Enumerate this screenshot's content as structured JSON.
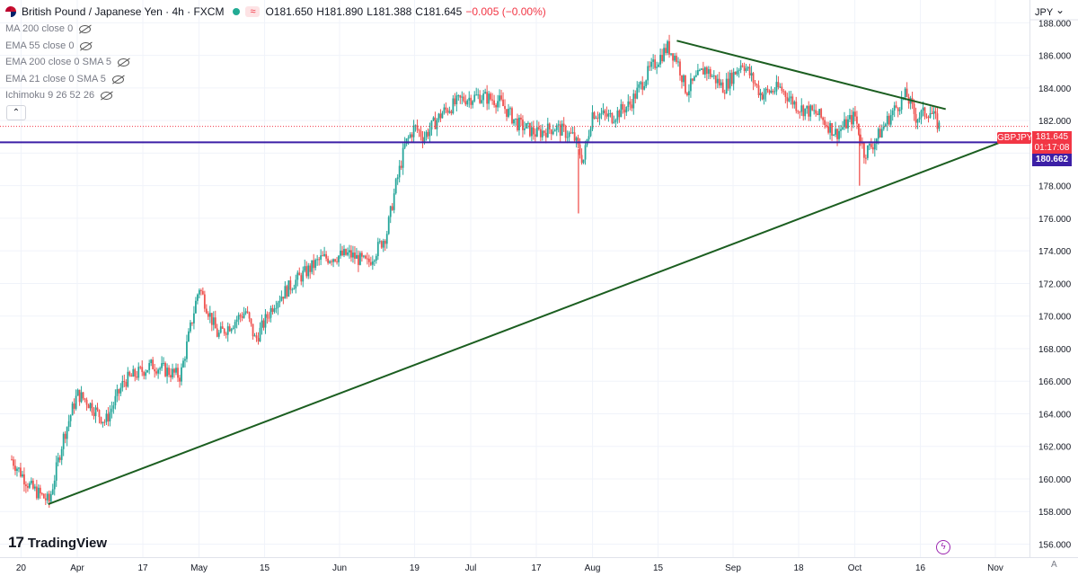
{
  "header": {
    "title": "British Pound / Japanese Yen · 4h · FXCM",
    "open": "O181.650",
    "high": "H181.890",
    "low": "L181.388",
    "close": "C181.645",
    "change": "−0.005 (−0.00%)"
  },
  "indicators": [
    "MA 200 close 0",
    "EMA 55 close 0",
    "EMA 200 close 0 SMA 5",
    "EMA 21 close 0 SMA 5",
    "Ichimoku 9 26 52 26"
  ],
  "currency_label": "JPY",
  "symbol_tag": "GBPJPY",
  "price_tag": "181.645",
  "countdown_tag": "01:17:08",
  "level_tag": "180.662",
  "logo_text": "TradingView",
  "auto_label": "A",
  "colors": {
    "up": "#26a69a",
    "down": "#ef5350",
    "trend": "#1b5e20",
    "level": "#3c1fa6",
    "tag": "#f23645"
  },
  "chart_data": {
    "type": "candlestick",
    "ylim": [
      155.2,
      189.4
    ],
    "ytick_values": [
      156,
      158,
      160,
      162,
      164,
      166,
      168,
      170,
      172,
      174,
      176,
      178,
      180,
      182,
      184,
      186,
      188
    ],
    "ytick_labels": [
      "156.000",
      "158.000",
      "160.000",
      "162.000",
      "164.000",
      "166.000",
      "168.000",
      "170.000",
      "172.000",
      "174.000",
      "176.000",
      "178.000",
      "180.000",
      "182.000",
      "184.000",
      "186.000",
      "188.000"
    ],
    "xticks": [
      {
        "label": "20",
        "t": 0.01
      },
      {
        "label": "Apr",
        "t": 0.07
      },
      {
        "label": "17",
        "t": 0.14
      },
      {
        "label": "May",
        "t": 0.2
      },
      {
        "label": "15",
        "t": 0.27
      },
      {
        "label": "Jun",
        "t": 0.35
      },
      {
        "label": "19",
        "t": 0.43
      },
      {
        "label": "Jul",
        "t": 0.49
      },
      {
        "label": "17",
        "t": 0.56
      },
      {
        "label": "Aug",
        "t": 0.62
      },
      {
        "label": "15",
        "t": 0.69
      },
      {
        "label": "Sep",
        "t": 0.77
      },
      {
        "label": "18",
        "t": 0.84
      },
      {
        "label": "Oct",
        "t": 0.9
      },
      {
        "label": "16",
        "t": 0.97
      },
      {
        "label": "Nov",
        "t": 1.05
      }
    ],
    "price_path": [
      [
        0.0,
        161.2
      ],
      [
        0.02,
        159.5
      ],
      [
        0.04,
        158.6
      ],
      [
        0.055,
        162.5
      ],
      [
        0.07,
        165.2
      ],
      [
        0.08,
        164.8
      ],
      [
        0.1,
        163.5
      ],
      [
        0.12,
        166.0
      ],
      [
        0.15,
        167.0
      ],
      [
        0.18,
        166.3
      ],
      [
        0.2,
        171.8
      ],
      [
        0.22,
        168.8
      ],
      [
        0.25,
        170.3
      ],
      [
        0.26,
        168.5
      ],
      [
        0.28,
        170.8
      ],
      [
        0.3,
        172.0
      ],
      [
        0.33,
        173.5
      ],
      [
        0.36,
        173.8
      ],
      [
        0.38,
        173.2
      ],
      [
        0.4,
        175.0
      ],
      [
        0.41,
        178.0
      ],
      [
        0.42,
        180.5
      ],
      [
        0.43,
        181.6
      ],
      [
        0.44,
        181.0
      ],
      [
        0.46,
        182.5
      ],
      [
        0.48,
        183.3
      ],
      [
        0.5,
        183.5
      ],
      [
        0.52,
        183.2
      ],
      [
        0.54,
        181.8
      ],
      [
        0.56,
        181.2
      ],
      [
        0.58,
        181.6
      ],
      [
        0.6,
        181.0
      ],
      [
        0.61,
        179.5
      ],
      [
        0.62,
        182.5
      ],
      [
        0.64,
        182.2
      ],
      [
        0.66,
        183.0
      ],
      [
        0.68,
        185.0
      ],
      [
        0.7,
        186.5
      ],
      [
        0.71,
        185.8
      ],
      [
        0.72,
        183.8
      ],
      [
        0.74,
        185.2
      ],
      [
        0.76,
        184.0
      ],
      [
        0.78,
        185.6
      ],
      [
        0.8,
        183.6
      ],
      [
        0.82,
        184.0
      ],
      [
        0.84,
        182.8
      ],
      [
        0.86,
        182.4
      ],
      [
        0.88,
        181.2
      ],
      [
        0.9,
        182.3
      ],
      [
        0.91,
        180.0
      ],
      [
        0.92,
        180.6
      ],
      [
        0.94,
        182.5
      ],
      [
        0.955,
        183.6
      ],
      [
        0.965,
        182.2
      ],
      [
        0.98,
        182.6
      ],
      [
        0.99,
        181.64
      ]
    ],
    "spikes": [
      {
        "t": 0.605,
        "low": 176.3
      },
      {
        "t": 0.905,
        "low": 178.0
      }
    ],
    "trendlines": [
      {
        "start": [
          0.039,
          158.45
        ],
        "end": [
          1.08,
          181.2
        ]
      },
      {
        "start": [
          0.71,
          186.9
        ],
        "end": [
          0.997,
          182.7
        ]
      }
    ],
    "level_line": 180.662,
    "last_price": 181.645
  }
}
